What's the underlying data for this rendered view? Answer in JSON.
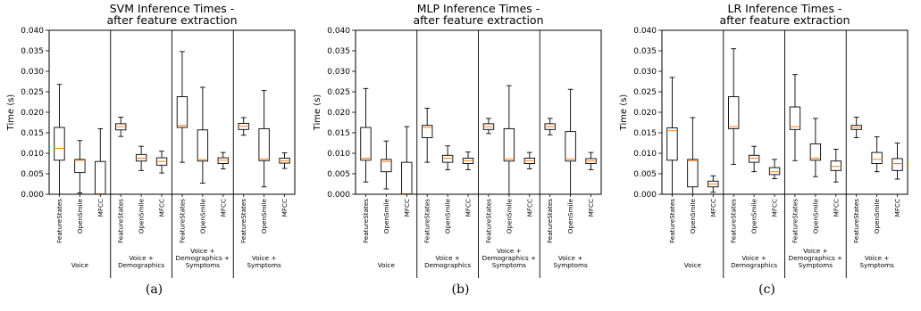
{
  "captions": [
    "(a)",
    "(b)",
    "(c)"
  ],
  "chart_data": [
    {
      "type": "box",
      "title_lines": [
        "SVM Inference Times -",
        "after feature extraction"
      ],
      "ylabel": "Time (s)",
      "ylim": [
        0,
        0.04
      ],
      "yticks": [
        "0.000",
        "0.005",
        "0.010",
        "0.015",
        "0.020",
        "0.025",
        "0.030",
        "0.035",
        "0.040"
      ],
      "categories": [
        "FeatureStates",
        "OpenSmile",
        "MFCC"
      ],
      "groups": [
        {
          "label_lines": [
            "Voice"
          ],
          "boxes": [
            {
              "whislo": 0.0,
              "q1": 0.0083,
              "med": 0.0112,
              "q3": 0.0163,
              "whishi": 0.0268
            },
            {
              "whislo": 0.0003,
              "q1": 0.0053,
              "med": 0.0083,
              "q3": 0.0085,
              "whishi": 0.0131
            },
            {
              "whislo": 0.0,
              "q1": 0.0,
              "med": 0.0001,
              "q3": 0.008,
              "whishi": 0.016
            }
          ]
        },
        {
          "label_lines": [
            "Voice +",
            "Demographics"
          ],
          "boxes": [
            {
              "whislo": 0.0141,
              "q1": 0.0157,
              "med": 0.0165,
              "q3": 0.0172,
              "whishi": 0.0188
            },
            {
              "whislo": 0.0058,
              "q1": 0.0081,
              "med": 0.0088,
              "q3": 0.0097,
              "whishi": 0.0117
            },
            {
              "whislo": 0.0052,
              "q1": 0.0071,
              "med": 0.008,
              "q3": 0.0089,
              "whishi": 0.0105
            }
          ]
        },
        {
          "label_lines": [
            "Voice +",
            "Demographics +",
            "Symptoms"
          ],
          "boxes": [
            {
              "whislo": 0.0078,
              "q1": 0.0163,
              "med": 0.0168,
              "q3": 0.0238,
              "whishi": 0.0348
            },
            {
              "whislo": 0.0027,
              "q1": 0.0081,
              "med": 0.0085,
              "q3": 0.0157,
              "whishi": 0.0261
            },
            {
              "whislo": 0.0062,
              "q1": 0.0075,
              "med": 0.0083,
              "q3": 0.0089,
              "whishi": 0.0102
            }
          ]
        },
        {
          "label_lines": [
            "Voice +",
            "Symptoms"
          ],
          "boxes": [
            {
              "whislo": 0.0144,
              "q1": 0.0158,
              "med": 0.0166,
              "q3": 0.0173,
              "whishi": 0.0187
            },
            {
              "whislo": 0.0018,
              "q1": 0.0082,
              "med": 0.0086,
              "q3": 0.016,
              "whishi": 0.0253
            },
            {
              "whislo": 0.0063,
              "q1": 0.0076,
              "med": 0.0082,
              "q3": 0.0088,
              "whishi": 0.0101
            }
          ]
        }
      ]
    },
    {
      "type": "box",
      "title_lines": [
        "MLP Inference Times -",
        "after feature extraction"
      ],
      "ylabel": "Time (s)",
      "ylim": [
        0,
        0.04
      ],
      "yticks": [
        "0.000",
        "0.005",
        "0.010",
        "0.015",
        "0.020",
        "0.025",
        "0.030",
        "0.035",
        "0.040"
      ],
      "categories": [
        "FeatureStates",
        "OpenSmile",
        "MFCC"
      ],
      "groups": [
        {
          "label_lines": [
            "Voice"
          ],
          "boxes": [
            {
              "whislo": 0.003,
              "q1": 0.0083,
              "med": 0.0088,
              "q3": 0.0163,
              "whishi": 0.0258
            },
            {
              "whislo": 0.0013,
              "q1": 0.0055,
              "med": 0.008,
              "q3": 0.0085,
              "whishi": 0.013
            },
            {
              "whislo": 0.0,
              "q1": 0.0,
              "med": 0.0001,
              "q3": 0.0078,
              "whishi": 0.0165
            }
          ]
        },
        {
          "label_lines": [
            "Voice +",
            "Demographics"
          ],
          "boxes": [
            {
              "whislo": 0.0078,
              "q1": 0.0138,
              "med": 0.0163,
              "q3": 0.0168,
              "whishi": 0.021
            },
            {
              "whislo": 0.006,
              "q1": 0.0078,
              "med": 0.0088,
              "q3": 0.0095,
              "whishi": 0.0118
            },
            {
              "whislo": 0.006,
              "q1": 0.0075,
              "med": 0.0082,
              "q3": 0.0088,
              "whishi": 0.0103
            }
          ]
        },
        {
          "label_lines": [
            "Voice +",
            "Demographics +",
            "Symptoms"
          ],
          "boxes": [
            {
              "whislo": 0.0148,
              "q1": 0.0158,
              "med": 0.0165,
              "q3": 0.0172,
              "whishi": 0.0185
            },
            {
              "whislo": 0.0,
              "q1": 0.0081,
              "med": 0.0086,
              "q3": 0.016,
              "whishi": 0.0265
            },
            {
              "whislo": 0.0062,
              "q1": 0.0075,
              "med": 0.0082,
              "q3": 0.0088,
              "whishi": 0.0102
            }
          ]
        },
        {
          "label_lines": [
            "Voice +",
            "Symptoms"
          ],
          "boxes": [
            {
              "whislo": 0.0145,
              "q1": 0.0158,
              "med": 0.0165,
              "q3": 0.0172,
              "whishi": 0.0185
            },
            {
              "whislo": 0.0,
              "q1": 0.0081,
              "med": 0.0086,
              "q3": 0.0153,
              "whishi": 0.0256
            },
            {
              "whislo": 0.006,
              "q1": 0.0075,
              "med": 0.0081,
              "q3": 0.0087,
              "whishi": 0.0102
            }
          ]
        }
      ]
    },
    {
      "type": "box",
      "title_lines": [
        "LR Inference Times -",
        "after feature extraction"
      ],
      "ylabel": "Time (s)",
      "ylim": [
        0,
        0.04
      ],
      "yticks": [
        "0.000",
        "0.005",
        "0.010",
        "0.015",
        "0.020",
        "0.025",
        "0.030",
        "0.035",
        "0.040"
      ],
      "categories": [
        "FeatureStates",
        "OpenSmile",
        "MFCC"
      ],
      "groups": [
        {
          "label_lines": [
            "Voice"
          ],
          "boxes": [
            {
              "whislo": 0.0,
              "q1": 0.0083,
              "med": 0.0155,
              "q3": 0.0162,
              "whishi": 0.0285
            },
            {
              "whislo": 0.0,
              "q1": 0.0018,
              "med": 0.0082,
              "q3": 0.0085,
              "whishi": 0.0187
            },
            {
              "whislo": 0.0005,
              "q1": 0.0018,
              "med": 0.0025,
              "q3": 0.0032,
              "whishi": 0.0045
            }
          ]
        },
        {
          "label_lines": [
            "Voice +",
            "Demographics"
          ],
          "boxes": [
            {
              "whislo": 0.0073,
              "q1": 0.016,
              "med": 0.0165,
              "q3": 0.0238,
              "whishi": 0.0355
            },
            {
              "whislo": 0.0055,
              "q1": 0.0078,
              "med": 0.0088,
              "q3": 0.0095,
              "whishi": 0.0117
            },
            {
              "whislo": 0.0038,
              "q1": 0.0048,
              "med": 0.0055,
              "q3": 0.0065,
              "whishi": 0.0085
            }
          ]
        },
        {
          "label_lines": [
            "Voice +",
            "Demographics +",
            "Symptoms"
          ],
          "boxes": [
            {
              "whislo": 0.0082,
              "q1": 0.0158,
              "med": 0.0165,
              "q3": 0.0213,
              "whishi": 0.0292
            },
            {
              "whislo": 0.0043,
              "q1": 0.0083,
              "med": 0.0088,
              "q3": 0.0123,
              "whishi": 0.0185
            },
            {
              "whislo": 0.003,
              "q1": 0.0058,
              "med": 0.0068,
              "q3": 0.0081,
              "whishi": 0.011
            }
          ]
        },
        {
          "label_lines": [
            "Voice +",
            "Symptoms"
          ],
          "boxes": [
            {
              "whislo": 0.0138,
              "q1": 0.0158,
              "med": 0.0163,
              "q3": 0.0168,
              "whishi": 0.0188
            },
            {
              "whislo": 0.0055,
              "q1": 0.0075,
              "med": 0.0085,
              "q3": 0.0102,
              "whishi": 0.014
            },
            {
              "whislo": 0.0037,
              "q1": 0.0058,
              "med": 0.0075,
              "q3": 0.0087,
              "whishi": 0.0125
            }
          ]
        }
      ]
    }
  ],
  "colors": {
    "median": "#ff7f0e",
    "box": "#000000",
    "background": "#ffffff"
  }
}
